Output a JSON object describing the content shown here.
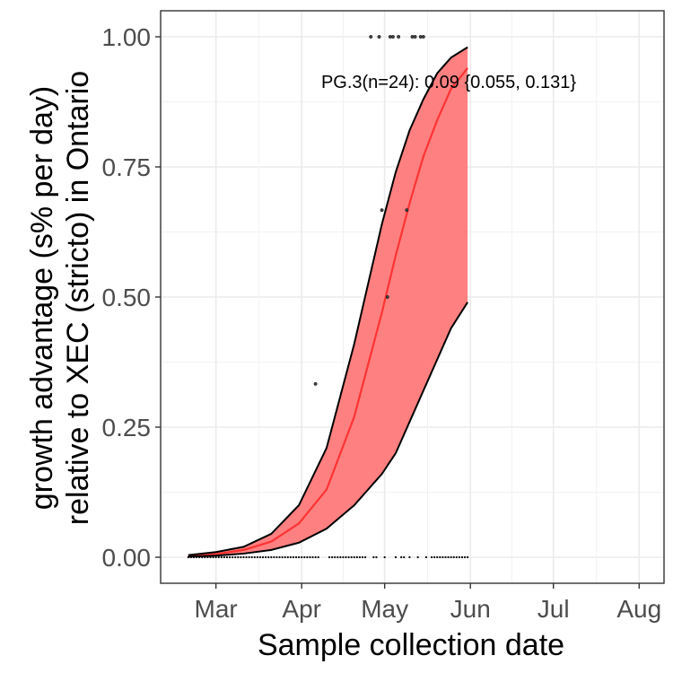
{
  "chart_data": {
    "type": "line",
    "xlabel": "Sample collection date",
    "ylabel_lines": [
      "growth advantage (s% per day)",
      "relative to XEC (stricto) in Ontario"
    ],
    "annotation": "PG.3(n=24): 0.09 {0.055, 0.131}",
    "x_tick_labels": [
      "Mar",
      "Apr",
      "May",
      "Jun",
      "Jul",
      "Aug"
    ],
    "x_tick_dates": [
      "2025-03-01",
      "2025-04-01",
      "2025-05-01",
      "2025-06-01",
      "2025-07-01",
      "2025-08-01"
    ],
    "xlim": [
      "2025-02-09",
      "2025-08-10"
    ],
    "y_tick_labels": [
      "0.00",
      "0.25",
      "0.50",
      "0.75",
      "1.00"
    ],
    "y_ticks": [
      0,
      0.25,
      0.5,
      0.75,
      1.0
    ],
    "ylim": [
      -0.05,
      1.05
    ],
    "grid": true,
    "colors": {
      "fit": "#ff3333",
      "ribbon": "#ff8080",
      "bound": "#000000",
      "points": "#000000"
    },
    "series": [
      {
        "role": "fit",
        "x": [
          "2025-02-19",
          "2025-03-01",
          "2025-03-11",
          "2025-03-21",
          "2025-03-31",
          "2025-04-10",
          "2025-04-20",
          "2025-04-30",
          "2025-05-05",
          "2025-05-10",
          "2025-05-15",
          "2025-05-20",
          "2025-05-25",
          "2025-05-31"
        ],
        "y": [
          0.002,
          0.006,
          0.014,
          0.03,
          0.065,
          0.13,
          0.27,
          0.47,
          0.58,
          0.68,
          0.77,
          0.84,
          0.9,
          0.94
        ]
      },
      {
        "role": "upper",
        "x": [
          "2025-02-19",
          "2025-03-01",
          "2025-03-11",
          "2025-03-21",
          "2025-03-31",
          "2025-04-10",
          "2025-04-20",
          "2025-04-30",
          "2025-05-05",
          "2025-05-10",
          "2025-05-15",
          "2025-05-20",
          "2025-05-25",
          "2025-05-31"
        ],
        "y": [
          0.004,
          0.01,
          0.02,
          0.045,
          0.1,
          0.21,
          0.41,
          0.64,
          0.74,
          0.82,
          0.88,
          0.93,
          0.96,
          0.98
        ]
      },
      {
        "role": "lower",
        "x": [
          "2025-02-19",
          "2025-03-01",
          "2025-03-11",
          "2025-03-21",
          "2025-03-31",
          "2025-04-10",
          "2025-04-20",
          "2025-04-30",
          "2025-05-05",
          "2025-05-10",
          "2025-05-15",
          "2025-05-20",
          "2025-05-25",
          "2025-05-31"
        ],
        "y": [
          0.001,
          0.003,
          0.007,
          0.014,
          0.028,
          0.055,
          0.1,
          0.16,
          0.2,
          0.26,
          0.32,
          0.38,
          0.44,
          0.49
        ]
      }
    ],
    "points": [
      {
        "x": "2025-04-06",
        "y": 0.333
      },
      {
        "x": "2025-04-26",
        "y": 1.0
      },
      {
        "x": "2025-04-29",
        "y": 1.0
      },
      {
        "x": "2025-04-30",
        "y": 0.667
      },
      {
        "x": "2025-05-02",
        "y": 0.5
      },
      {
        "x": "2025-05-03",
        "y": 1.0
      },
      {
        "x": "2025-05-04",
        "y": 1.0
      },
      {
        "x": "2025-05-06",
        "y": 1.0
      },
      {
        "x": "2025-05-09",
        "y": 0.667
      },
      {
        "x": "2025-05-11",
        "y": 1.0
      },
      {
        "x": "2025-05-12",
        "y": 1.0
      },
      {
        "x": "2025-05-14",
        "y": 1.0
      },
      {
        "x": "2025-05-15",
        "y": 1.0
      }
    ],
    "zero_points": {
      "start": "2025-02-19",
      "end": "2025-05-31",
      "y": 0,
      "dates": [
        "2025-02-19",
        "2025-02-20",
        "2025-02-21",
        "2025-02-22",
        "2025-02-23",
        "2025-02-24",
        "2025-02-25",
        "2025-02-26",
        "2025-02-27",
        "2025-02-28",
        "2025-03-01",
        "2025-03-02",
        "2025-03-03",
        "2025-03-04",
        "2025-03-05",
        "2025-03-06",
        "2025-03-07",
        "2025-03-08",
        "2025-03-09",
        "2025-03-10",
        "2025-03-11",
        "2025-03-12",
        "2025-03-13",
        "2025-03-14",
        "2025-03-15",
        "2025-03-16",
        "2025-03-17",
        "2025-03-18",
        "2025-03-19",
        "2025-03-20",
        "2025-03-21",
        "2025-03-22",
        "2025-03-23",
        "2025-03-24",
        "2025-03-25",
        "2025-03-26",
        "2025-03-27",
        "2025-03-28",
        "2025-03-29",
        "2025-03-30",
        "2025-03-31",
        "2025-04-01",
        "2025-04-02",
        "2025-04-03",
        "2025-04-04",
        "2025-04-05",
        "2025-04-06",
        "2025-04-07",
        "2025-04-11",
        "2025-04-12",
        "2025-04-13",
        "2025-04-14",
        "2025-04-15",
        "2025-04-16",
        "2025-04-17",
        "2025-04-18",
        "2025-04-19",
        "2025-04-20",
        "2025-04-21",
        "2025-04-22",
        "2025-04-23",
        "2025-04-24",
        "2025-04-27",
        "2025-04-28",
        "2025-05-01",
        "2025-05-05",
        "2025-05-07",
        "2025-05-08",
        "2025-05-10",
        "2025-05-13",
        "2025-05-16",
        "2025-05-18",
        "2025-05-19",
        "2025-05-20",
        "2025-05-21",
        "2025-05-22",
        "2025-05-23",
        "2025-05-24",
        "2025-05-25",
        "2025-05-26",
        "2025-05-27",
        "2025-05-28",
        "2025-05-29",
        "2025-05-30",
        "2025-05-31"
      ]
    }
  }
}
